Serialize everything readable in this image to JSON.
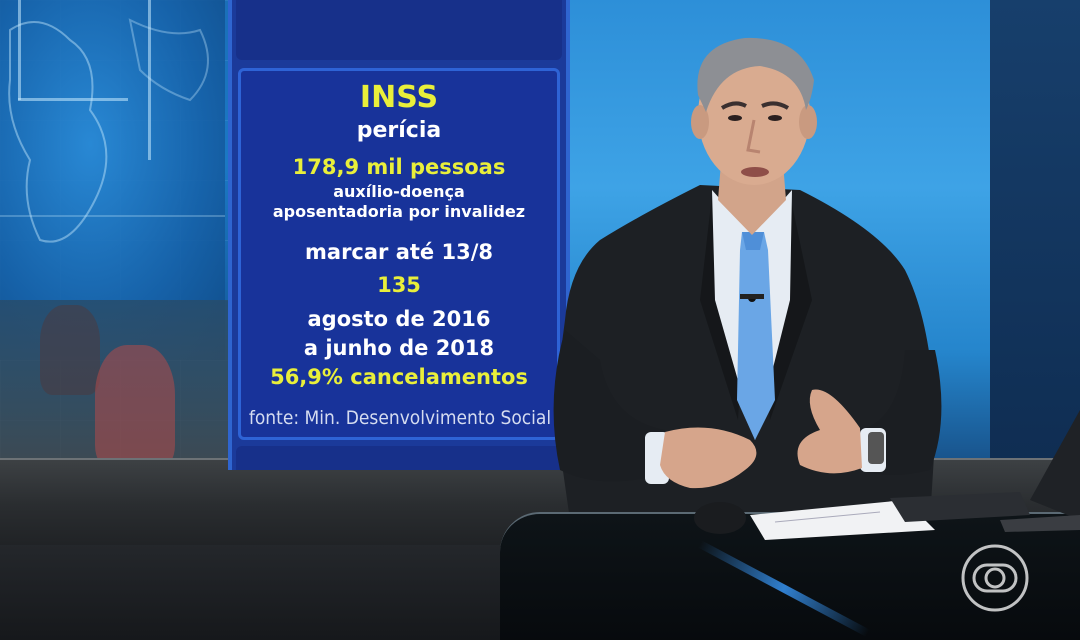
{
  "graphic": {
    "title": "INSS",
    "subtitle": "perícia",
    "people": "178,9 mil pessoas",
    "benefit1": "auxílio-doença",
    "benefit2": "aposentadoria por invalidez",
    "deadline": "marcar até 13/8",
    "number": "135",
    "period_start": "agosto de 2016",
    "period_end": "a junho de 2018",
    "cancellations": "56,9% cancelamentos",
    "source": "fonte: Min. Desenvolvimento Social"
  },
  "colors": {
    "panel_blue": "#18339a",
    "panel_border": "#2e63d6",
    "highlight_yellow": "#e9ef3a"
  },
  "broadcaster_logo": "globo-logo-icon"
}
